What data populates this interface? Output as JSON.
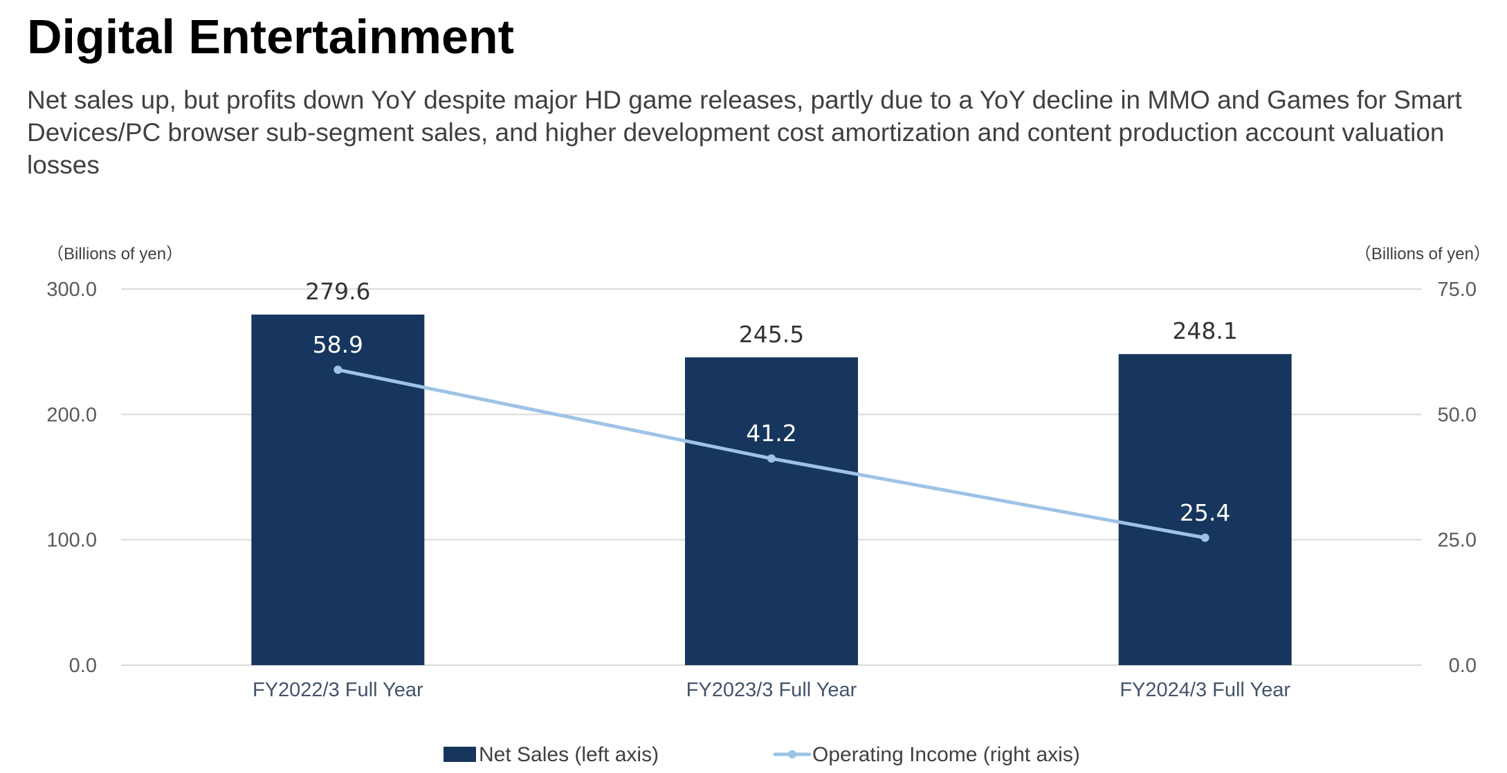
{
  "page": {
    "title": "Digital Entertainment",
    "subtitle": "Net sales up, but profits down YoY despite major HD game releases, partly due to a YoY decline in MMO and Games for Smart Devices/PC browser sub-segment sales, and higher development cost amortization and content production account valuation losses"
  },
  "colors": {
    "bar": "#17365d",
    "line": "#9dc3e6",
    "grid": "#d9d9d9"
  },
  "chart_data": {
    "type": "bar",
    "categories": [
      "FY2022/3 Full Year",
      "FY2023/3 Full Year",
      "FY2024/3 Full Year"
    ],
    "series": [
      {
        "name": "Net Sales (left axis)",
        "type": "bar",
        "axis": "left",
        "values": [
          279.6,
          245.5,
          248.1
        ]
      },
      {
        "name": "Operating Income (right axis)",
        "type": "line",
        "axis": "right",
        "values": [
          58.9,
          41.2,
          25.4
        ]
      }
    ],
    "y_left": {
      "unit": "（Billions of yen）",
      "ylim": [
        0,
        300
      ],
      "ticks": [
        "0.0",
        "100.0",
        "200.0",
        "300.0"
      ]
    },
    "y_right": {
      "unit": "（Billions of yen）",
      "ylim": [
        0,
        75
      ],
      "ticks": [
        "0.0",
        "25.0",
        "50.0",
        "75.0"
      ]
    },
    "grid": true,
    "legend": "bottom"
  }
}
